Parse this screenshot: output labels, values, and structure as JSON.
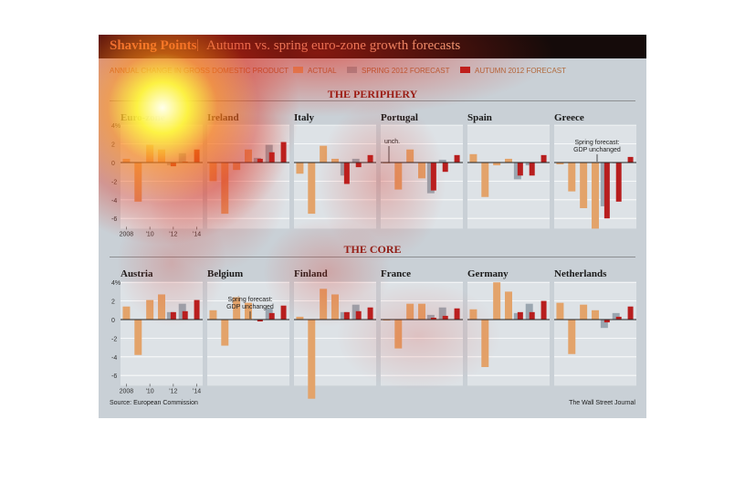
{
  "header": {
    "title": "Shaving Points",
    "separator": "|",
    "subtitle": "Autumn vs. spring euro-zone growth forecasts"
  },
  "legend": {
    "measure": "ANNUAL CHANGE IN GROSS DOMESTIC PRODUCT",
    "actual": "ACTUAL",
    "spring": "SPRING 2012 FORECAST",
    "autumn": "AUTUMN 2012 FORECAST"
  },
  "colors": {
    "actual": "#e3a36a",
    "spring": "#9aa6b0",
    "autumn": "#b81e1e",
    "title_bar": "#150b0a",
    "section_title": "#8d1b14",
    "panel": "#dde2e6"
  },
  "sections": {
    "periphery": "THE PERIPHERY",
    "core": "THE CORE"
  },
  "footer": {
    "source": "Source: European Commission",
    "credit": "The Wall Street Journal"
  },
  "chart_data": {
    "type": "bar",
    "x": [
      "2008",
      "2009",
      "2010",
      "2011",
      "2012",
      "2013",
      "2014"
    ],
    "x_tick_labels": [
      "2008",
      "'10",
      "'12",
      "'14"
    ],
    "y_tick_labels": [
      "4%",
      "2",
      "0",
      "-2",
      "-4",
      "-6"
    ],
    "ylim": [
      -7,
      4
    ],
    "series": [
      {
        "name": "ACTUAL",
        "color": "#e3a36a"
      },
      {
        "name": "SPRING 2012 FORECAST",
        "color": "#9aa6b0"
      },
      {
        "name": "AUTUMN 2012 FORECAST",
        "color": "#b81e1e"
      }
    ],
    "panels": [
      {
        "section": "periphery",
        "country": "Euro-zone",
        "actual": [
          0.4,
          -4.2,
          1.9,
          1.4
        ],
        "spring": [
          -0.3,
          1.0,
          null
        ],
        "autumn": [
          -0.4,
          0.1,
          1.4
        ]
      },
      {
        "section": "periphery",
        "country": "Ireland",
        "actual": [
          -2.0,
          -5.5,
          -0.8,
          1.4
        ],
        "spring": [
          0.5,
          1.9,
          null
        ],
        "autumn": [
          0.4,
          1.1,
          2.2
        ]
      },
      {
        "section": "periphery",
        "country": "Italy",
        "actual": [
          -1.2,
          -5.5,
          1.8,
          0.4
        ],
        "spring": [
          -1.4,
          0.4,
          null
        ],
        "autumn": [
          -2.3,
          -0.5,
          0.8
        ]
      },
      {
        "section": "periphery",
        "country": "Portugal",
        "actual": [
          0.0,
          -2.9,
          1.4,
          -1.7
        ],
        "spring": [
          -3.3,
          0.3,
          null
        ],
        "autumn": [
          -3.0,
          -1.0,
          0.8
        ],
        "annotation": "unch."
      },
      {
        "section": "periphery",
        "country": "Spain",
        "actual": [
          0.9,
          -3.7,
          -0.3,
          0.4
        ],
        "spring": [
          -1.8,
          -0.3,
          null
        ],
        "autumn": [
          -1.4,
          -1.4,
          0.8
        ]
      },
      {
        "section": "periphery",
        "country": "Greece",
        "actual": [
          -0.2,
          -3.1,
          -4.9,
          -7.1
        ],
        "spring": [
          -4.7,
          0.0,
          null
        ],
        "autumn": [
          -6.0,
          -4.2,
          0.6
        ],
        "annotation": "Spring forecast: GDP unchanged"
      },
      {
        "section": "core",
        "country": "Austria",
        "actual": [
          1.4,
          -3.8,
          2.1,
          2.7
        ],
        "spring": [
          0.8,
          1.7,
          null
        ],
        "autumn": [
          0.8,
          0.9,
          2.1
        ]
      },
      {
        "section": "core",
        "country": "Belgium",
        "actual": [
          1.0,
          -2.8,
          2.4,
          1.8
        ],
        "spring": [
          0.0,
          1.2,
          null
        ],
        "autumn": [
          -0.2,
          0.7,
          1.5
        ],
        "annotation": "Spring forecast: GDP unchanged"
      },
      {
        "section": "core",
        "country": "Finland",
        "actual": [
          0.3,
          -8.5,
          3.3,
          2.7
        ],
        "spring": [
          0.8,
          1.6,
          null
        ],
        "autumn": [
          0.8,
          0.9,
          1.3
        ]
      },
      {
        "section": "core",
        "country": "France",
        "actual": [
          -0.1,
          -3.1,
          1.7,
          1.7
        ],
        "spring": [
          0.5,
          1.3,
          null
        ],
        "autumn": [
          0.2,
          0.4,
          1.2
        ]
      },
      {
        "section": "core",
        "country": "Germany",
        "actual": [
          1.1,
          -5.1,
          4.0,
          3.0
        ],
        "spring": [
          0.7,
          1.7,
          null
        ],
        "autumn": [
          0.8,
          0.8,
          2.0
        ]
      },
      {
        "section": "core",
        "country": "Netherlands",
        "actual": [
          1.8,
          -3.7,
          1.6,
          1.0
        ],
        "spring": [
          -0.9,
          0.7,
          null
        ],
        "autumn": [
          -0.3,
          0.3,
          1.4
        ]
      }
    ]
  }
}
